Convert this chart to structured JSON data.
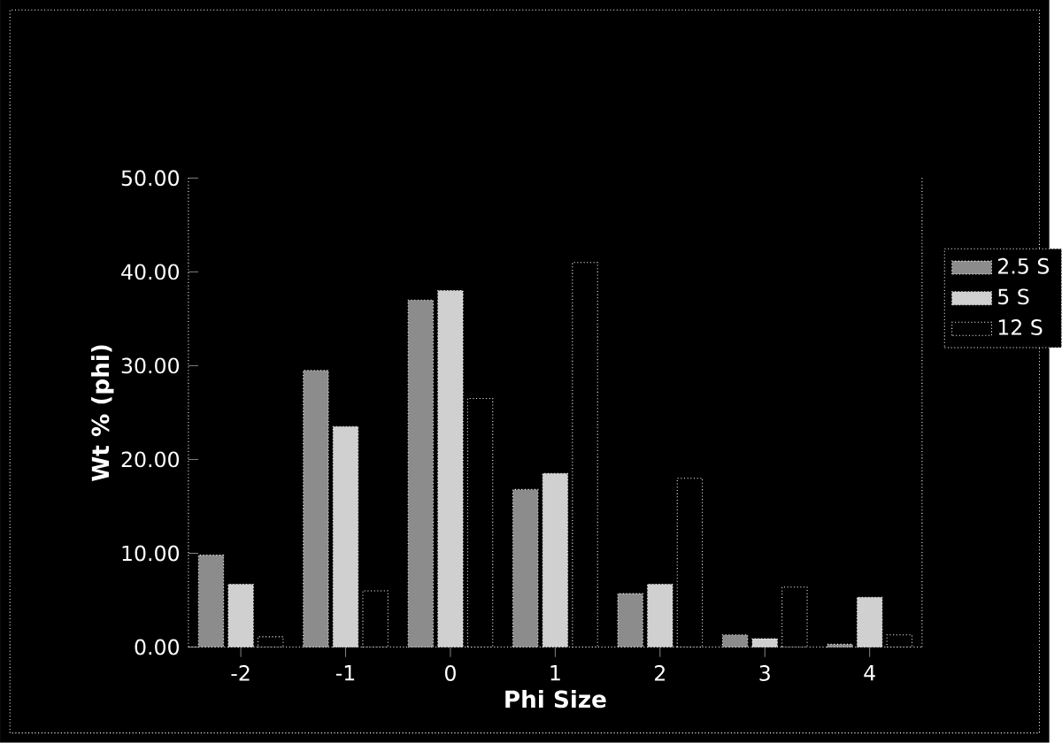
{
  "chart_data": {
    "type": "bar",
    "xlabel": "Phi Size",
    "ylabel": "Wt % (phi)",
    "categories": [
      "-2",
      "-1",
      "0",
      "1",
      "2",
      "3",
      "4"
    ],
    "series": [
      {
        "name": "2.5 S",
        "color": "#8c8c8c",
        "values": [
          9.8,
          29.5,
          37.0,
          16.8,
          5.7,
          1.3,
          0.3
        ]
      },
      {
        "name": "5 S",
        "color": "#d0d0d0",
        "values": [
          6.7,
          23.5,
          38.0,
          18.5,
          6.7,
          0.9,
          5.3
        ]
      },
      {
        "name": "12 S",
        "color": "#000000",
        "values": [
          1.1,
          6.0,
          26.5,
          41.0,
          18.0,
          6.4,
          1.3
        ]
      }
    ],
    "ylim": [
      0,
      50
    ],
    "yticks": [
      {
        "value": 0,
        "label": "0.00"
      },
      {
        "value": 10,
        "label": "10.00"
      },
      {
        "value": 20,
        "label": "20.00"
      },
      {
        "value": 30,
        "label": "30.00"
      },
      {
        "value": 40,
        "label": "40.00"
      },
      {
        "value": 50,
        "label": "50.00"
      }
    ],
    "legend": "right"
  }
}
